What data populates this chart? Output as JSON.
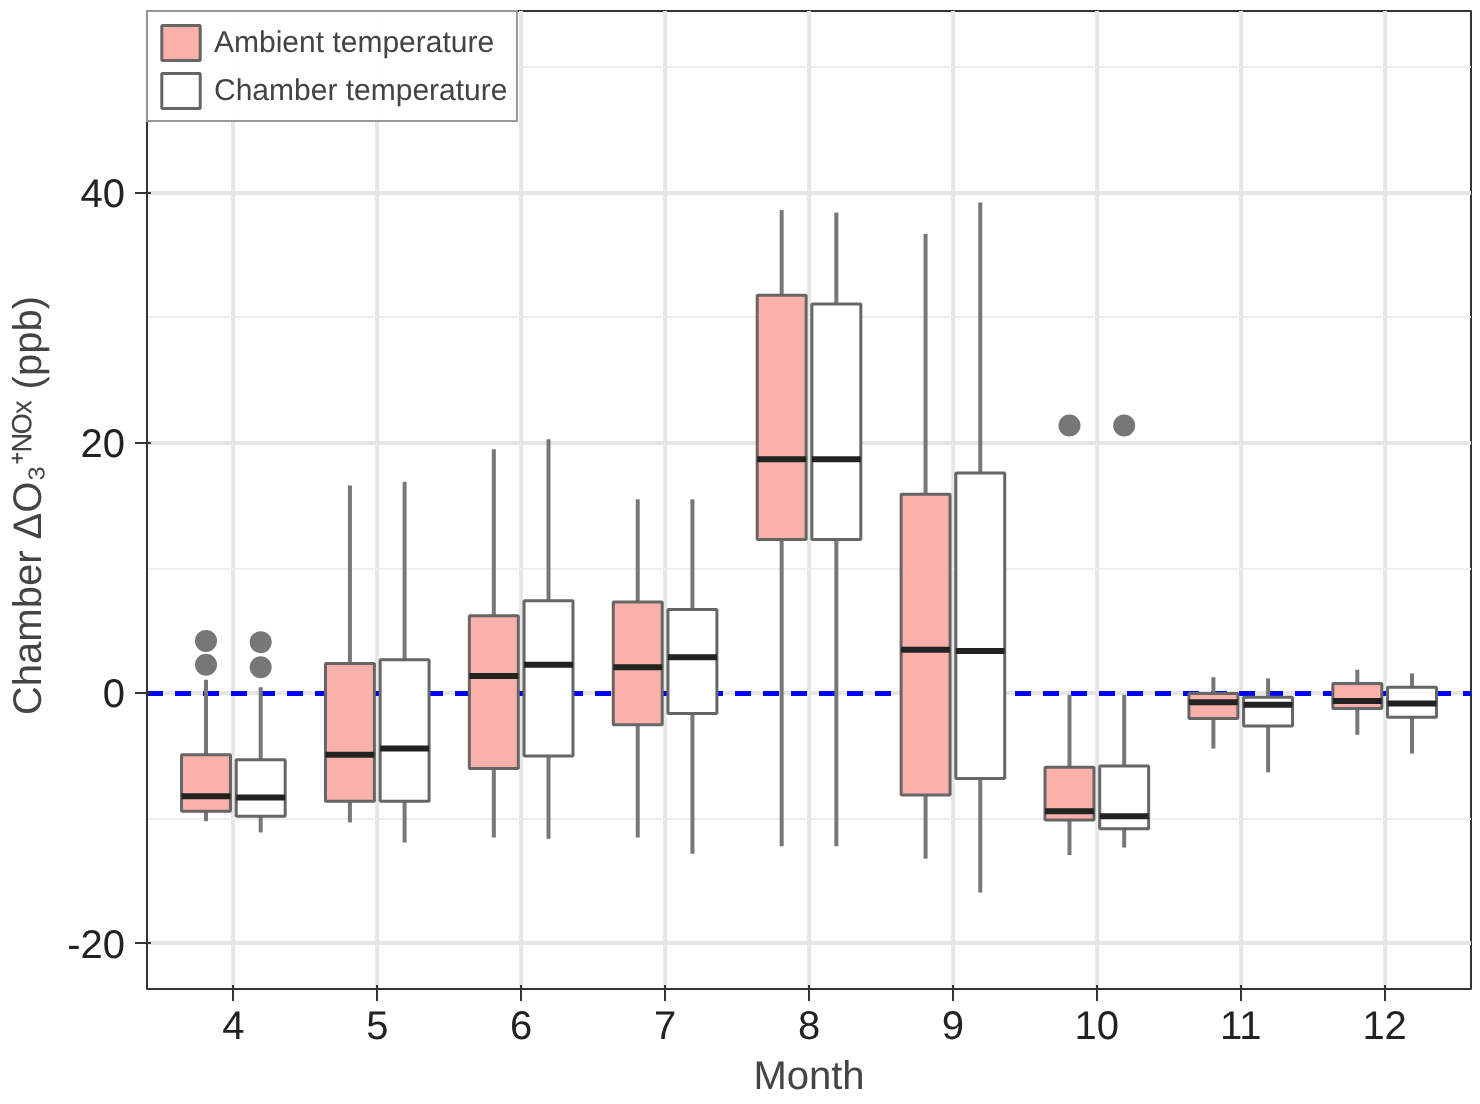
{
  "chart_data": {
    "type": "box",
    "xlabel": "Month",
    "ylabel": "Chamber  ΔO₃⁺ᴺᴼˣ (ppb)",
    "categories": [
      "4",
      "5",
      "6",
      "7",
      "8",
      "9",
      "10",
      "11",
      "12"
    ],
    "ylim": [
      -23.6,
      54.5
    ],
    "yticks": [
      -20,
      0,
      20,
      40
    ],
    "grid": true,
    "legend": "top left",
    "ref_lines": [
      {
        "axis": "y",
        "value": 0,
        "color": "#0000ff",
        "line_style": "dashed"
      }
    ],
    "series": [
      {
        "name": "Ambient temperature",
        "color": "#fbb0aa",
        "boxes": [
          {
            "low": -10.2,
            "q1": -9.4,
            "median": -8.2,
            "q3": -4.9,
            "high": 1.1,
            "outliers": [
              4.2,
              2.3
            ]
          },
          {
            "low": -10.3,
            "q1": -8.6,
            "median": -4.9,
            "q3": 2.4,
            "high": 16.6
          },
          {
            "low": -11.5,
            "q1": -6.0,
            "median": 1.4,
            "q3": 6.2,
            "high": 19.5
          },
          {
            "low": -11.5,
            "q1": -2.5,
            "median": 2.1,
            "q3": 7.3,
            "high": 15.5
          },
          {
            "low": -12.2,
            "q1": 12.3,
            "median": 18.7,
            "q3": 31.8,
            "high": 38.6
          },
          {
            "low": -13.2,
            "q1": -8.1,
            "median": 3.5,
            "q3": 15.9,
            "high": 36.7
          },
          {
            "low": -12.9,
            "q1": -10.1,
            "median": -9.4,
            "q3": -5.9,
            "high": -0.1,
            "outliers": [
              21.4
            ]
          },
          {
            "low": -4.4,
            "q1": -2.0,
            "median": -0.7,
            "q3": 0.0,
            "high": 1.3
          },
          {
            "low": -3.3,
            "q1": -1.2,
            "median": -0.6,
            "q3": 0.8,
            "high": 1.9
          }
        ]
      },
      {
        "name": "Chamber temperature",
        "color": "#ffffff",
        "boxes": [
          {
            "low": -11.1,
            "q1": -9.8,
            "median": -8.3,
            "q3": -5.3,
            "high": 0.5,
            "outliers": [
              4.1,
              2.1
            ]
          },
          {
            "low": -11.9,
            "q1": -8.6,
            "median": -4.4,
            "q3": 2.7,
            "high": 16.9
          },
          {
            "low": -11.6,
            "q1": -5.0,
            "median": 2.3,
            "q3": 7.4,
            "high": 20.3
          },
          {
            "low": -12.8,
            "q1": -1.6,
            "median": 2.9,
            "q3": 6.7,
            "high": 15.5
          },
          {
            "low": -12.2,
            "q1": 12.3,
            "median": 18.7,
            "q3": 31.1,
            "high": 38.4
          },
          {
            "low": -15.9,
            "q1": -6.8,
            "median": 3.4,
            "q3": 17.6,
            "high": 39.2
          },
          {
            "low": -12.3,
            "q1": -10.8,
            "median": -9.8,
            "q3": -5.8,
            "high": -0.1,
            "outliers": [
              21.4
            ]
          },
          {
            "low": -6.3,
            "q1": -2.6,
            "median": -0.9,
            "q3": -0.3,
            "high": 1.2
          },
          {
            "low": -4.8,
            "q1": -1.9,
            "median": -0.8,
            "q3": 0.5,
            "high": 1.6
          }
        ]
      }
    ]
  }
}
